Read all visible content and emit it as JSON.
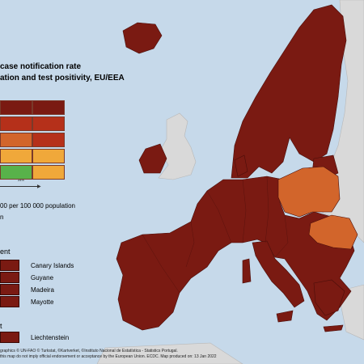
{
  "title": {
    "line1": "case notification rate",
    "line2": "ation and test positivity, EU/EEA"
  },
  "colors": {
    "sea": "#c6d9ea",
    "non_eu_land": "#d9d9d9",
    "dark_red": "#7a1a12",
    "red": "#b5301a",
    "orange": "#d2652b",
    "light_orange": "#f0a83a",
    "green": "#58b24a",
    "border": "#4a0e0a"
  },
  "legend_grid": {
    "rows": [
      [
        "dark_red",
        "dark_red"
      ],
      [
        "red",
        "red"
      ],
      [
        "orange",
        "red"
      ],
      [
        "light_orange",
        "light_orange"
      ],
      [
        "green",
        "light_orange"
      ]
    ],
    "axis_tick": "≥4%",
    "axis_caption": "00 per 100 000 population",
    "axis_caption_short": "n"
  },
  "outermost_regions": {
    "heading": "ent",
    "items": [
      "Canary Islands",
      "Guyane",
      "Madeira",
      "Mayotte"
    ]
  },
  "other_countries": {
    "heading": "t",
    "items": [
      "Liechtenstein"
    ]
  },
  "regions": [
    {
      "name": "dark-red-europe-mainland",
      "status": "dark_red"
    },
    {
      "name": "poland",
      "status": "orange"
    },
    {
      "name": "romania",
      "status": "orange"
    },
    {
      "name": "bulgaria",
      "status": "dark_red"
    },
    {
      "name": "non-eu-land",
      "status": "non_eu_land"
    }
  ],
  "footer": {
    "line1": "graphics © UN-FAO © Turkstat, ©Kartverket, ©Instituto Nacional de Estatística - Statistics Portugal.",
    "line2": "this map do not imply official endorsement or acceptance by the European Union. ECDC. Map produced on: 13 Jan 2022"
  }
}
